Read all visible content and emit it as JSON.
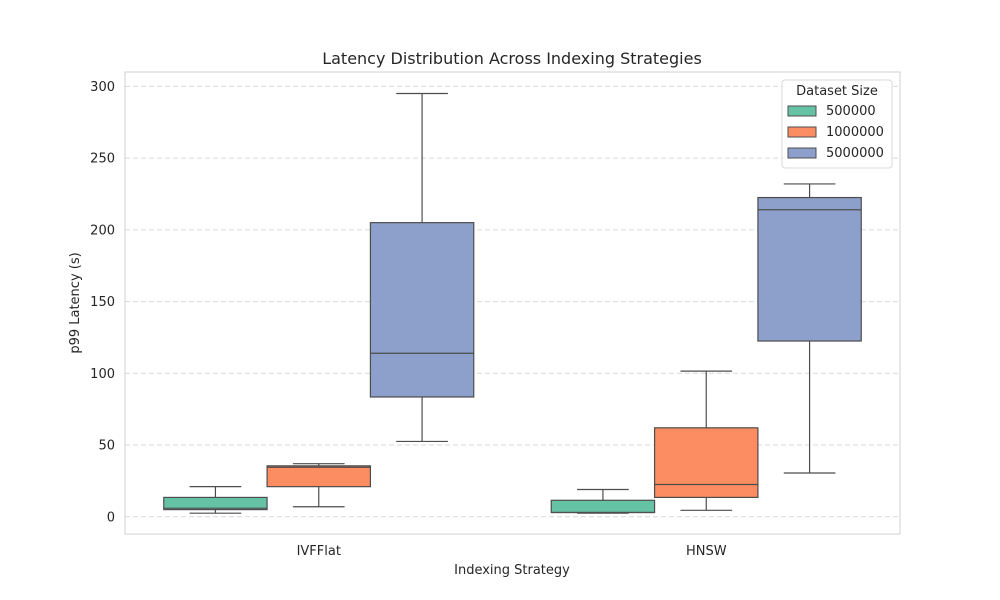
{
  "chart_data": {
    "type": "box",
    "title": "Latency Distribution Across Indexing Strategies",
    "xlabel": "Indexing Strategy",
    "ylabel": "p99 Latency (s)",
    "categories": [
      "IVFFlat",
      "HNSW"
    ],
    "ylim": [
      -12,
      310
    ],
    "yticks": [
      0,
      50,
      100,
      150,
      200,
      250,
      300
    ],
    "grid": true,
    "legend": {
      "title": "Dataset Size",
      "placement": "top-right"
    },
    "series": [
      {
        "name": "500000",
        "color": "#66c2a5",
        "boxes": [
          {
            "min": 2.5,
            "q1": 5,
            "median": 6,
            "q3": 13.5,
            "max": 21
          },
          {
            "min": 2.5,
            "q1": 3,
            "median": 3,
            "q3": 11.5,
            "max": 19
          }
        ]
      },
      {
        "name": "1000000",
        "color": "#fc8d62",
        "boxes": [
          {
            "min": 7,
            "q1": 21,
            "median": 34.5,
            "q3": 35.5,
            "max": 37
          },
          {
            "min": 4.5,
            "q1": 13.5,
            "median": 22.5,
            "q3": 62,
            "max": 101.5
          }
        ]
      },
      {
        "name": "5000000",
        "color": "#8da0cb",
        "boxes": [
          {
            "min": 52.5,
            "q1": 83.5,
            "median": 114,
            "q3": 205,
            "max": 295
          },
          {
            "min": 30.5,
            "q1": 122.5,
            "median": 214,
            "q3": 222.5,
            "max": 232
          }
        ]
      }
    ]
  }
}
